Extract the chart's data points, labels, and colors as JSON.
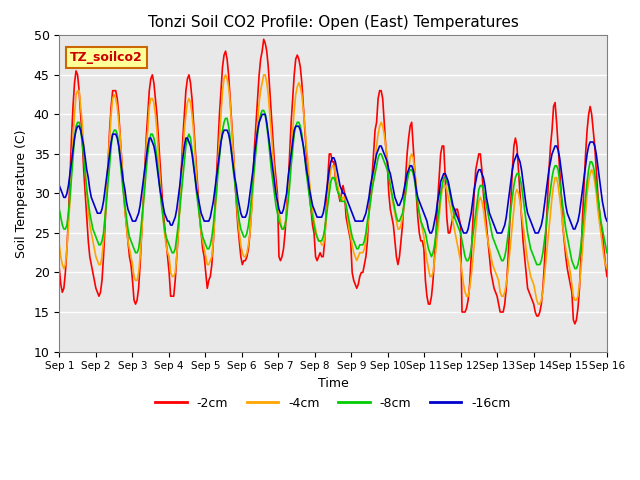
{
  "title": "Tonzi Soil CO2 Profile: Open (East) Temperatures",
  "xlabel": "Time",
  "ylabel": "Soil Temperature (C)",
  "ylim": [
    10,
    50
  ],
  "xlim": [
    0,
    15
  ],
  "background_color": "#e8e8e8",
  "grid_color": "white",
  "legend_label": "TZ_soilco2",
  "series_labels": [
    "-2cm",
    "-4cm",
    "-8cm",
    "-16cm"
  ],
  "series_colors": [
    "#ff0000",
    "#ffa500",
    "#00cc00",
    "#0000cc"
  ],
  "xtick_labels": [
    "Sep 1",
    "Sep 2",
    "Sep 3",
    "Sep 4",
    "Sep 5",
    "Sep 6",
    "Sep 7",
    "Sep 8",
    "Sep 9",
    "Sep 10",
    "Sep 11",
    "Sep 12",
    "Sep 13",
    "Sep 14",
    "Sep 15",
    "Sep 16"
  ],
  "ytick_values": [
    10,
    15,
    20,
    25,
    30,
    35,
    40,
    45,
    50
  ],
  "depth_2cm": [
    20.5,
    18.5,
    17.5,
    18.0,
    20.0,
    23.0,
    27.0,
    32.0,
    37.0,
    41.0,
    44.0,
    45.5,
    45.0,
    43.0,
    40.0,
    37.0,
    33.0,
    30.0,
    27.0,
    24.0,
    22.0,
    21.0,
    20.0,
    19.0,
    18.0,
    17.5,
    17.0,
    17.5,
    19.0,
    22.0,
    26.0,
    30.0,
    34.0,
    38.0,
    41.0,
    43.0,
    43.0,
    43.0,
    42.0,
    40.0,
    37.0,
    34.0,
    31.0,
    28.0,
    26.0,
    24.0,
    22.0,
    21.0,
    19.0,
    16.5,
    16.0,
    16.5,
    18.0,
    21.0,
    25.0,
    29.0,
    33.0,
    37.0,
    40.0,
    43.0,
    44.5,
    45.0,
    44.0,
    42.0,
    40.0,
    37.0,
    34.0,
    31.0,
    28.0,
    26.0,
    24.0,
    22.0,
    20.0,
    17.0,
    17.0,
    17.0,
    19.0,
    22.0,
    25.0,
    29.0,
    33.0,
    37.0,
    40.0,
    43.0,
    44.5,
    45.0,
    44.0,
    42.0,
    39.0,
    36.0,
    33.0,
    30.0,
    27.0,
    25.0,
    23.0,
    22.0,
    20.0,
    18.0,
    19.0,
    19.5,
    21.0,
    24.0,
    28.0,
    32.0,
    36.0,
    40.0,
    43.0,
    46.0,
    47.5,
    48.0,
    47.0,
    45.0,
    42.0,
    39.0,
    36.0,
    32.0,
    29.0,
    26.0,
    24.0,
    22.0,
    21.0,
    21.5,
    21.5,
    22.0,
    23.0,
    25.0,
    28.0,
    32.0,
    36.0,
    39.0,
    42.0,
    45.0,
    47.0,
    48.0,
    49.5,
    49.0,
    48.0,
    46.0,
    43.0,
    40.0,
    37.0,
    34.0,
    32.0,
    30.0,
    22.0,
    21.5,
    22.0,
    23.0,
    25.0,
    28.0,
    31.0,
    35.0,
    39.0,
    42.0,
    45.0,
    47.0,
    47.5,
    47.0,
    46.0,
    44.0,
    41.0,
    38.0,
    35.0,
    33.0,
    30.0,
    28.0,
    26.0,
    25.0,
    22.0,
    21.5,
    22.0,
    22.5,
    22.0,
    22.0,
    24.0,
    28.0,
    32.0,
    35.0,
    35.0,
    34.0,
    34.0,
    32.0,
    31.0,
    30.0,
    29.0,
    30.0,
    31.0,
    30.0,
    27.0,
    26.0,
    25.0,
    24.0,
    20.0,
    19.0,
    18.5,
    18.0,
    18.5,
    19.5,
    20.0,
    20.0,
    21.0,
    22.0,
    24.0,
    28.0,
    30.0,
    32.0,
    35.0,
    38.0,
    39.0,
    42.0,
    43.0,
    43.0,
    42.0,
    39.0,
    36.0,
    34.0,
    30.0,
    28.0,
    27.0,
    26.0,
    24.0,
    22.0,
    21.0,
    22.0,
    24.0,
    26.0,
    29.0,
    32.0,
    35.0,
    37.0,
    38.5,
    39.0,
    36.0,
    33.0,
    30.0,
    27.0,
    25.0,
    24.0,
    24.0,
    23.0,
    19.0,
    17.0,
    16.0,
    16.0,
    17.0,
    19.0,
    22.0,
    25.0,
    29.0,
    32.0,
    35.0,
    36.0,
    36.0,
    32.0,
    27.0,
    25.0,
    25.0,
    26.0,
    27.0,
    27.0,
    28.0,
    28.0,
    27.0,
    26.0,
    15.0,
    15.0,
    15.0,
    15.5,
    16.5,
    18.5,
    22.0,
    26.0,
    30.0,
    33.0,
    34.0,
    35.0,
    35.0,
    33.0,
    30.0,
    28.0,
    26.0,
    24.0,
    22.0,
    20.0,
    19.0,
    18.0,
    17.5,
    17.0,
    16.0,
    15.0,
    15.0,
    15.0,
    16.0,
    18.0,
    21.0,
    25.0,
    29.0,
    33.0,
    36.0,
    37.0,
    36.0,
    33.0,
    30.0,
    27.0,
    24.0,
    22.0,
    20.0,
    18.0,
    17.5,
    17.0,
    16.5,
    16.0,
    15.0,
    14.5,
    14.5,
    15.0,
    16.0,
    18.0,
    21.0,
    25.0,
    29.0,
    33.0,
    36.0,
    38.0,
    41.0,
    41.5,
    39.0,
    36.0,
    33.0,
    30.0,
    26.0,
    24.0,
    22.0,
    20.5,
    19.5,
    18.5,
    17.5,
    14.0,
    13.5,
    14.0,
    15.5,
    18.0,
    22.0,
    27.0,
    31.0,
    35.0,
    38.0,
    40.0,
    41.0,
    40.0,
    38.0,
    36.0,
    33.0,
    30.0,
    28.0,
    26.0,
    25.0,
    23.0,
    21.0,
    19.5
  ],
  "depth_4cm": [
    23.5,
    22.0,
    21.0,
    20.5,
    21.0,
    23.0,
    26.0,
    29.0,
    33.0,
    37.0,
    40.0,
    42.5,
    43.0,
    43.0,
    41.0,
    39.0,
    36.0,
    33.0,
    30.0,
    28.0,
    26.0,
    25.0,
    24.0,
    23.0,
    22.0,
    21.5,
    21.0,
    21.0,
    22.0,
    24.0,
    27.0,
    30.0,
    34.0,
    37.0,
    40.0,
    42.0,
    42.5,
    42.0,
    41.0,
    39.0,
    37.0,
    34.0,
    31.0,
    28.0,
    26.0,
    24.0,
    23.0,
    22.0,
    21.0,
    19.5,
    19.0,
    19.0,
    20.0,
    22.0,
    25.0,
    28.0,
    32.0,
    36.0,
    38.0,
    41.0,
    42.0,
    42.0,
    41.5,
    40.0,
    38.0,
    35.0,
    32.0,
    29.0,
    27.0,
    25.0,
    23.5,
    22.5,
    22.0,
    20.0,
    19.5,
    19.5,
    20.0,
    22.0,
    25.0,
    28.0,
    32.0,
    35.0,
    38.0,
    40.0,
    41.5,
    42.0,
    41.5,
    40.0,
    38.0,
    35.0,
    32.0,
    29.0,
    27.0,
    25.0,
    24.0,
    23.0,
    22.0,
    21.0,
    21.0,
    21.5,
    22.0,
    24.0,
    27.0,
    30.0,
    34.0,
    37.0,
    40.0,
    43.0,
    44.5,
    45.0,
    44.5,
    43.5,
    41.5,
    38.5,
    35.5,
    32.5,
    29.5,
    27.0,
    25.0,
    23.5,
    22.5,
    22.0,
    22.0,
    22.5,
    23.5,
    25.0,
    27.5,
    30.5,
    33.5,
    36.5,
    39.0,
    41.5,
    43.0,
    44.0,
    45.0,
    45.0,
    44.0,
    42.5,
    40.0,
    37.5,
    35.0,
    32.5,
    30.5,
    29.0,
    27.5,
    26.5,
    25.5,
    25.5,
    26.0,
    27.5,
    30.0,
    32.5,
    35.5,
    38.0,
    40.5,
    42.5,
    43.5,
    44.0,
    43.5,
    42.5,
    40.5,
    38.5,
    36.0,
    34.0,
    31.5,
    29.5,
    28.0,
    26.5,
    25.5,
    24.5,
    24.0,
    24.0,
    23.5,
    23.5,
    24.5,
    27.0,
    29.5,
    31.5,
    33.0,
    33.5,
    33.5,
    32.5,
    31.5,
    30.5,
    29.5,
    29.0,
    29.5,
    29.5,
    28.5,
    27.0,
    25.5,
    24.5,
    23.5,
    22.5,
    22.0,
    21.5,
    22.0,
    22.5,
    22.5,
    22.5,
    23.0,
    24.0,
    25.5,
    27.5,
    29.0,
    30.5,
    32.0,
    34.0,
    36.0,
    37.5,
    38.5,
    39.0,
    38.5,
    37.5,
    36.0,
    34.5,
    32.5,
    31.0,
    29.5,
    28.5,
    27.5,
    26.5,
    25.5,
    25.5,
    26.0,
    27.0,
    28.5,
    30.0,
    31.5,
    33.0,
    34.5,
    35.0,
    34.5,
    33.0,
    31.0,
    29.0,
    27.5,
    26.5,
    25.5,
    24.5,
    23.0,
    21.5,
    20.5,
    19.5,
    19.5,
    20.0,
    21.5,
    23.0,
    25.0,
    27.0,
    29.0,
    30.5,
    31.0,
    31.0,
    30.5,
    29.5,
    28.5,
    27.5,
    26.5,
    25.5,
    24.5,
    23.5,
    22.5,
    21.5,
    20.0,
    18.5,
    17.5,
    17.0,
    17.0,
    18.0,
    19.5,
    21.5,
    23.5,
    25.5,
    27.5,
    29.0,
    29.5,
    29.0,
    28.0,
    26.5,
    25.0,
    24.0,
    23.0,
    22.0,
    21.0,
    20.5,
    20.0,
    19.5,
    19.0,
    17.5,
    17.0,
    17.0,
    17.5,
    18.5,
    20.0,
    22.0,
    24.0,
    26.0,
    28.0,
    30.0,
    30.5,
    30.0,
    29.0,
    27.5,
    26.0,
    24.5,
    23.0,
    21.5,
    20.5,
    19.5,
    19.0,
    18.5,
    17.5,
    16.5,
    16.0,
    16.0,
    16.5,
    17.5,
    19.5,
    21.5,
    23.5,
    25.5,
    27.5,
    29.5,
    31.0,
    32.0,
    32.0,
    31.0,
    29.5,
    28.0,
    26.0,
    24.5,
    23.0,
    22.0,
    21.0,
    20.0,
    18.5,
    17.0,
    16.5,
    16.5,
    17.0,
    18.5,
    20.5,
    23.0,
    25.5,
    27.5,
    30.0,
    31.5,
    32.5,
    33.0,
    32.5,
    31.5,
    30.0,
    28.0,
    26.5,
    25.0,
    23.5,
    22.0,
    21.0,
    20.5
  ],
  "depth_8cm": [
    28.0,
    27.0,
    26.0,
    25.5,
    25.5,
    26.0,
    27.5,
    29.5,
    32.0,
    34.5,
    37.0,
    38.5,
    39.0,
    39.0,
    38.0,
    36.5,
    34.5,
    32.5,
    30.5,
    29.0,
    27.5,
    26.5,
    25.5,
    25.0,
    24.5,
    24.0,
    23.5,
    23.5,
    24.0,
    25.0,
    27.0,
    29.0,
    31.5,
    33.5,
    36.0,
    37.5,
    38.0,
    38.0,
    37.5,
    36.0,
    34.0,
    32.0,
    30.0,
    28.5,
    27.0,
    25.5,
    24.5,
    24.0,
    23.5,
    23.0,
    22.5,
    22.5,
    23.0,
    24.5,
    26.5,
    28.5,
    30.5,
    33.0,
    35.0,
    36.5,
    37.5,
    37.5,
    37.0,
    36.0,
    34.5,
    32.5,
    30.5,
    28.5,
    27.0,
    25.5,
    24.5,
    24.0,
    23.5,
    23.0,
    22.5,
    22.5,
    23.0,
    24.5,
    26.0,
    28.0,
    30.0,
    32.0,
    34.0,
    36.0,
    37.0,
    37.5,
    37.0,
    35.5,
    34.0,
    32.0,
    30.0,
    28.5,
    27.0,
    25.5,
    24.5,
    24.0,
    23.5,
    23.0,
    23.0,
    23.5,
    24.5,
    26.0,
    28.0,
    30.0,
    32.5,
    34.5,
    36.5,
    38.0,
    39.0,
    39.5,
    39.5,
    38.5,
    37.0,
    35.0,
    33.0,
    31.5,
    29.5,
    28.0,
    26.5,
    25.5,
    25.0,
    24.5,
    24.5,
    25.0,
    26.0,
    27.5,
    29.5,
    31.5,
    33.5,
    35.5,
    37.5,
    39.0,
    40.0,
    40.5,
    40.5,
    40.0,
    38.5,
    37.0,
    35.0,
    33.0,
    31.5,
    30.0,
    28.5,
    27.5,
    26.5,
    26.0,
    25.5,
    25.5,
    26.0,
    27.0,
    29.0,
    31.0,
    33.5,
    35.5,
    37.5,
    38.5,
    39.0,
    39.0,
    38.5,
    37.5,
    36.0,
    34.5,
    32.5,
    31.0,
    29.5,
    28.0,
    27.0,
    26.0,
    25.0,
    24.5,
    24.0,
    24.0,
    24.0,
    24.5,
    25.5,
    27.0,
    28.5,
    30.0,
    31.5,
    32.0,
    32.0,
    31.5,
    30.5,
    30.0,
    29.5,
    29.0,
    29.0,
    29.0,
    28.5,
    27.5,
    26.5,
    25.5,
    24.5,
    24.0,
    23.5,
    23.0,
    23.0,
    23.5,
    23.5,
    23.5,
    24.0,
    25.0,
    26.5,
    27.5,
    29.0,
    30.5,
    31.5,
    32.5,
    33.5,
    34.5,
    35.0,
    35.0,
    34.5,
    34.0,
    33.5,
    33.0,
    32.0,
    31.0,
    30.0,
    29.0,
    28.0,
    27.0,
    26.5,
    26.5,
    27.0,
    27.5,
    28.5,
    30.0,
    31.5,
    32.5,
    33.0,
    33.0,
    32.5,
    31.5,
    30.0,
    28.5,
    27.5,
    26.5,
    26.0,
    25.5,
    25.0,
    24.0,
    23.0,
    22.5,
    22.0,
    22.5,
    23.5,
    25.0,
    26.5,
    28.0,
    30.0,
    31.0,
    32.0,
    32.0,
    31.5,
    31.0,
    30.0,
    29.0,
    28.0,
    27.0,
    26.5,
    26.0,
    25.5,
    25.0,
    24.0,
    23.0,
    22.0,
    21.5,
    21.5,
    22.0,
    23.0,
    24.5,
    26.0,
    27.5,
    29.0,
    30.5,
    31.0,
    31.0,
    30.5,
    29.5,
    28.5,
    27.5,
    26.5,
    25.5,
    24.5,
    24.0,
    23.5,
    23.0,
    22.5,
    22.0,
    21.5,
    21.5,
    22.0,
    23.0,
    24.5,
    26.0,
    28.0,
    29.5,
    31.0,
    32.0,
    32.5,
    32.5,
    32.0,
    31.0,
    29.5,
    28.0,
    26.5,
    25.0,
    24.0,
    23.0,
    22.5,
    22.0,
    21.5,
    21.0,
    21.0,
    21.0,
    21.5,
    22.5,
    24.0,
    25.5,
    27.5,
    29.0,
    30.5,
    32.0,
    33.0,
    33.5,
    33.5,
    33.0,
    31.5,
    30.0,
    28.5,
    27.0,
    25.5,
    24.5,
    23.5,
    22.5,
    21.5,
    21.0,
    20.5,
    20.5,
    21.0,
    22.0,
    23.5,
    25.5,
    27.5,
    29.5,
    31.5,
    33.0,
    34.0,
    34.0,
    33.5,
    32.5,
    31.0,
    29.5,
    28.0,
    26.5,
    25.5,
    24.5,
    23.5,
    22.5
  ],
  "depth_16cm": [
    31.0,
    30.5,
    30.0,
    29.5,
    29.5,
    30.0,
    31.0,
    32.5,
    34.0,
    35.5,
    37.0,
    38.0,
    38.5,
    38.5,
    38.0,
    37.0,
    36.0,
    34.5,
    33.0,
    32.0,
    30.5,
    29.5,
    29.0,
    28.5,
    28.0,
    27.5,
    27.5,
    27.5,
    28.0,
    29.0,
    30.5,
    32.0,
    33.5,
    35.0,
    36.5,
    37.5,
    37.5,
    37.5,
    37.0,
    36.0,
    34.5,
    33.0,
    31.5,
    30.5,
    29.0,
    28.0,
    27.5,
    27.0,
    26.5,
    26.5,
    26.5,
    27.0,
    27.5,
    28.5,
    30.0,
    31.5,
    33.0,
    34.5,
    36.0,
    37.0,
    37.0,
    36.5,
    36.0,
    35.0,
    33.5,
    32.0,
    30.5,
    29.5,
    28.5,
    27.5,
    27.0,
    26.5,
    26.5,
    26.0,
    26.0,
    26.5,
    27.0,
    28.0,
    29.5,
    31.0,
    33.0,
    34.5,
    36.0,
    37.0,
    37.0,
    36.5,
    36.0,
    35.0,
    33.5,
    32.0,
    30.5,
    29.5,
    28.5,
    27.5,
    27.0,
    26.5,
    26.5,
    26.5,
    26.5,
    27.0,
    28.0,
    29.0,
    30.5,
    32.0,
    33.5,
    35.0,
    36.5,
    37.5,
    38.0,
    38.0,
    38.0,
    37.5,
    36.5,
    35.0,
    33.5,
    32.0,
    31.0,
    29.5,
    28.5,
    27.5,
    27.0,
    27.0,
    27.0,
    27.5,
    28.5,
    30.0,
    31.5,
    33.0,
    35.0,
    36.5,
    38.0,
    39.0,
    39.5,
    40.0,
    40.0,
    40.0,
    39.0,
    37.5,
    36.0,
    34.5,
    33.0,
    31.5,
    30.0,
    29.0,
    28.0,
    27.5,
    27.5,
    28.0,
    29.0,
    30.0,
    32.0,
    33.5,
    35.0,
    36.5,
    38.0,
    38.5,
    38.5,
    38.5,
    38.0,
    37.0,
    36.0,
    34.5,
    33.0,
    32.0,
    30.5,
    29.5,
    28.5,
    28.0,
    27.5,
    27.0,
    27.0,
    27.0,
    27.0,
    27.5,
    28.5,
    30.0,
    31.5,
    33.0,
    34.0,
    34.5,
    34.5,
    34.0,
    33.0,
    32.0,
    31.0,
    30.5,
    30.0,
    30.0,
    29.5,
    29.0,
    28.5,
    28.0,
    27.5,
    27.0,
    26.5,
    26.5,
    26.5,
    26.5,
    26.5,
    26.5,
    27.0,
    27.5,
    28.5,
    29.5,
    31.0,
    32.0,
    33.0,
    34.0,
    35.0,
    35.5,
    36.0,
    36.0,
    35.5,
    35.0,
    34.5,
    34.0,
    33.0,
    32.5,
    31.5,
    30.5,
    29.5,
    29.0,
    28.5,
    28.5,
    29.0,
    29.5,
    30.5,
    31.5,
    32.5,
    33.0,
    33.5,
    33.5,
    33.0,
    32.0,
    30.5,
    29.5,
    29.0,
    28.5,
    28.0,
    27.5,
    27.0,
    26.5,
    25.5,
    25.0,
    25.0,
    25.5,
    26.5,
    27.5,
    29.0,
    30.0,
    31.5,
    32.0,
    32.5,
    32.5,
    32.0,
    31.5,
    30.5,
    29.5,
    28.5,
    28.0,
    27.5,
    27.0,
    26.5,
    26.0,
    25.5,
    25.0,
    25.0,
    25.0,
    25.5,
    26.5,
    27.5,
    29.0,
    30.5,
    31.5,
    32.5,
    33.0,
    33.0,
    32.5,
    32.0,
    31.0,
    29.5,
    28.5,
    27.5,
    27.0,
    26.5,
    26.0,
    25.5,
    25.0,
    25.0,
    25.0,
    25.0,
    25.5,
    26.0,
    27.0,
    28.5,
    30.0,
    31.5,
    33.0,
    34.0,
    34.5,
    35.0,
    34.5,
    34.0,
    33.0,
    31.5,
    30.0,
    28.5,
    27.5,
    27.0,
    26.5,
    26.0,
    25.5,
    25.0,
    25.0,
    25.0,
    25.5,
    26.0,
    27.0,
    28.5,
    30.0,
    31.5,
    33.0,
    34.0,
    35.0,
    35.5,
    36.0,
    36.0,
    35.5,
    34.5,
    33.0,
    31.5,
    30.0,
    28.5,
    27.5,
    27.0,
    26.5,
    26.0,
    25.5,
    25.5,
    26.0,
    26.5,
    27.5,
    29.0,
    30.5,
    32.0,
    33.5,
    35.0,
    36.0,
    36.5,
    36.5,
    36.5,
    36.0,
    35.0,
    33.5,
    32.0,
    30.5,
    29.0,
    28.0,
    27.0,
    26.5
  ]
}
